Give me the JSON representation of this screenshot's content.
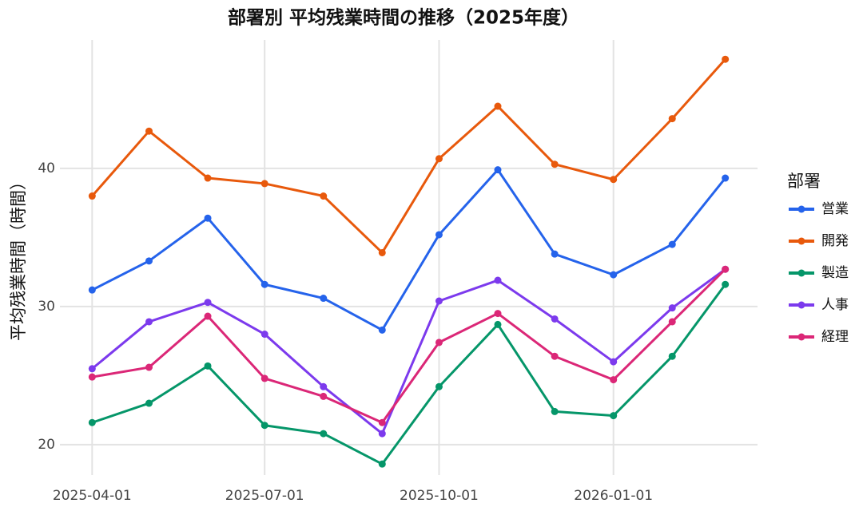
{
  "chart_data": {
    "type": "line",
    "title": "部署別 平均残業時間の推移（2025年度）",
    "y_label": "平均残業時間（時間）",
    "legend_title": "部署",
    "legend_position": "right",
    "grid": true,
    "x": [
      "2025-04-01",
      "2025-05-01",
      "2025-06-01",
      "2025-07-01",
      "2025-08-01",
      "2025-09-01",
      "2025-10-01",
      "2025-11-01",
      "2025-12-01",
      "2026-01-01",
      "2026-02-01",
      "2026-03-01"
    ],
    "xlim": [
      "2025-03-15",
      "2026-03-18"
    ],
    "xticks": [
      "2025-04-01",
      "2025-07-01",
      "2025-10-01",
      "2026-01-01"
    ],
    "ylim": [
      17.8,
      49.3
    ],
    "yticks": [
      20,
      30,
      40
    ],
    "series": [
      {
        "name": "営業",
        "color": "#2563eb",
        "values": [
          31.2,
          33.3,
          36.4,
          31.6,
          30.6,
          28.3,
          35.2,
          39.9,
          33.8,
          32.3,
          34.5,
          39.3
        ]
      },
      {
        "name": "開発",
        "color": "#e8590c",
        "values": [
          38.0,
          42.7,
          39.3,
          38.9,
          38.0,
          33.9,
          40.7,
          44.5,
          40.3,
          39.2,
          43.6,
          47.9
        ]
      },
      {
        "name": "製造",
        "color": "#059669",
        "values": [
          21.6,
          23.0,
          25.7,
          21.4,
          20.8,
          18.6,
          24.2,
          28.7,
          22.4,
          22.1,
          26.4,
          31.6
        ]
      },
      {
        "name": "人事",
        "color": "#7c3aed",
        "values": [
          25.5,
          28.9,
          30.3,
          28.0,
          24.2,
          20.8,
          30.4,
          31.9,
          29.1,
          26.0,
          29.9,
          32.7
        ]
      },
      {
        "name": "経理",
        "color": "#db2777",
        "values": [
          24.9,
          25.6,
          29.3,
          24.8,
          23.5,
          21.6,
          27.4,
          29.5,
          26.4,
          24.7,
          28.9,
          32.7
        ]
      }
    ]
  }
}
